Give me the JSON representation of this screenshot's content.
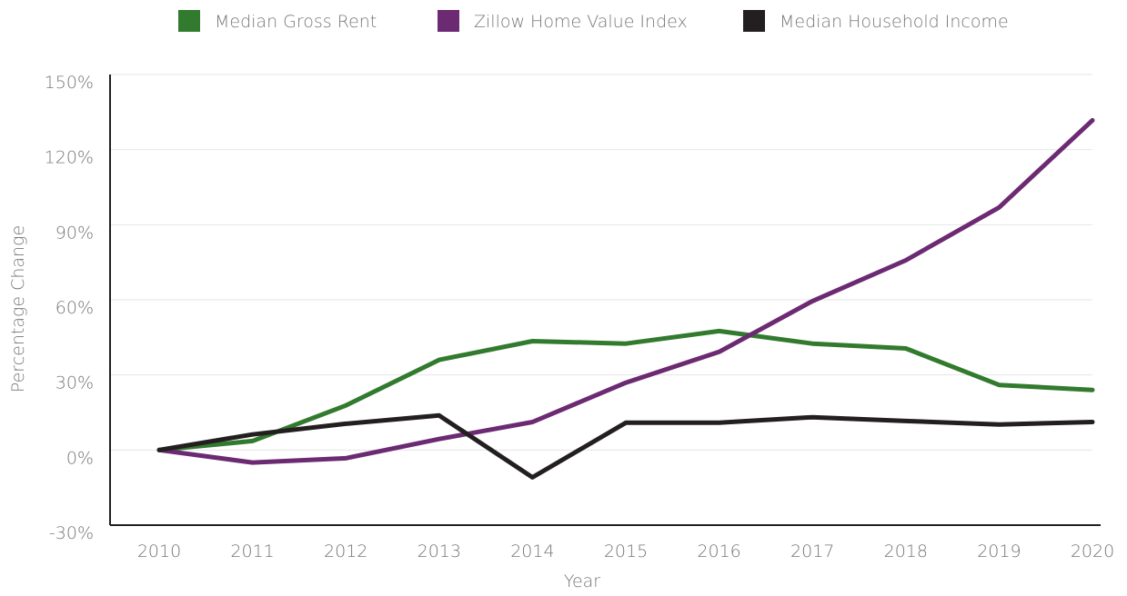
{
  "chart_data": {
    "type": "line",
    "x_label": "Year",
    "y_label": "Percentage Change",
    "categories": [
      "2010",
      "2011",
      "2012",
      "2013",
      "2014",
      "2015",
      "2016",
      "2017",
      "2018",
      "2019",
      "2020"
    ],
    "series": [
      {
        "name": "Median Gross Rent",
        "color": "#327a2e",
        "values": [
          0,
          3.6,
          17.8,
          36,
          43.5,
          42.5,
          47.5,
          42.5,
          40.6,
          26,
          24
        ]
      },
      {
        "name": "Zillow Home Value Index",
        "color": "#6b2a72",
        "values": [
          0,
          -5,
          -3.3,
          4.4,
          11.2,
          26.9,
          39.2,
          59.5,
          75.8,
          96.9,
          131.7
        ]
      },
      {
        "name": "Median Household Income",
        "color": "#231f20",
        "values": [
          0,
          6.2,
          10.5,
          13.8,
          -10.9,
          10.9,
          10.9,
          13.1,
          11.6,
          10.2,
          11.2
        ]
      }
    ],
    "ylim": [
      -30,
      150
    ],
    "yticks": [
      {
        "value": -30,
        "label": "-30%"
      },
      {
        "value": 0,
        "label": "0%"
      },
      {
        "value": 30,
        "label": "30%"
      },
      {
        "value": 60,
        "label": "60%"
      },
      {
        "value": 90,
        "label": "90%"
      },
      {
        "value": 120,
        "label": "120%"
      },
      {
        "value": 150,
        "label": "150%"
      }
    ],
    "grid": true,
    "legend": "top"
  }
}
